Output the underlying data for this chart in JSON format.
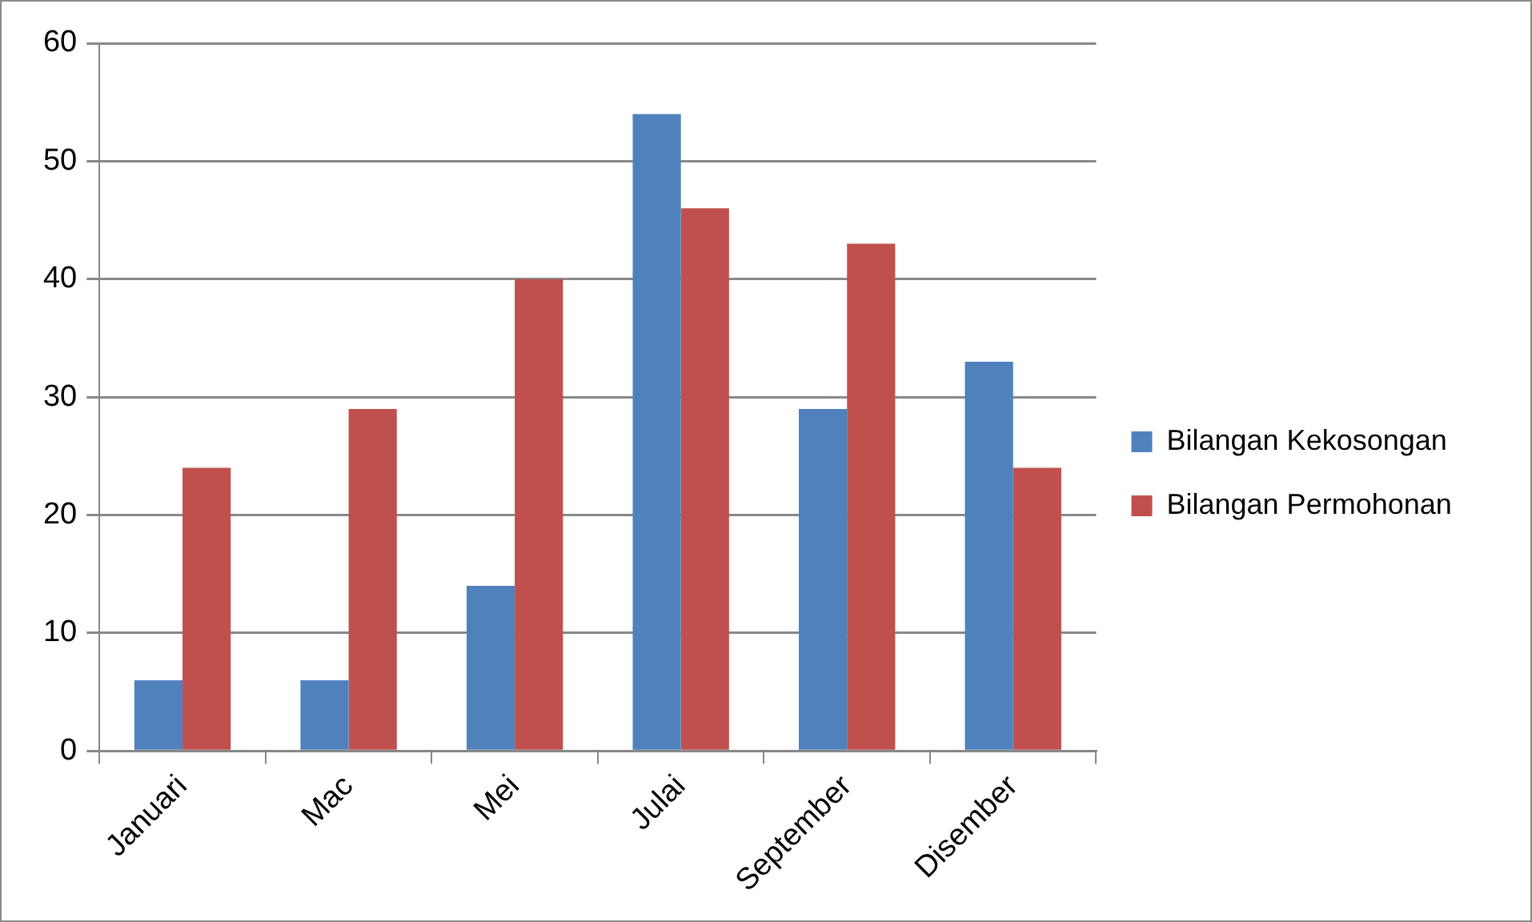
{
  "chart_data": {
    "type": "bar",
    "categories": [
      "Januari",
      "Mac",
      "Mei",
      "Julai",
      "September",
      "Disember"
    ],
    "series": [
      {
        "name": "Bilangan Kekosongan",
        "color": "#4f81bd",
        "values": [
          6,
          6,
          14,
          54,
          29,
          33
        ]
      },
      {
        "name": "Bilangan Permohonan",
        "color": "#c0504d",
        "values": [
          24,
          29,
          40,
          46,
          43,
          24
        ]
      }
    ],
    "ylim": [
      0,
      60
    ],
    "yticks": [
      0,
      10,
      20,
      30,
      40,
      50,
      60
    ],
    "grid": "y",
    "legend": "right"
  }
}
